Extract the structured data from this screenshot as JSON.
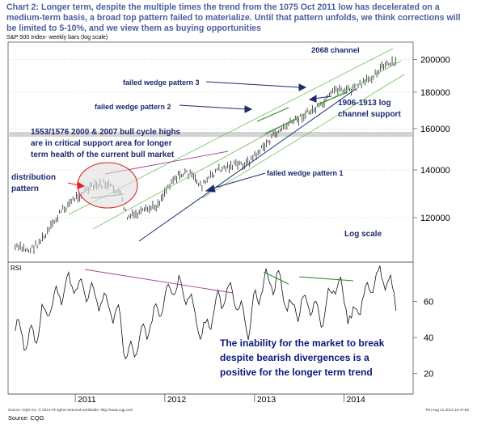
{
  "header": {
    "title": "Chart 2: Longer term, despite the multiple times the trend from the 1075 Oct 2011 low has decelerated on a medium-term basis, a broad top pattern failed to materialize. Until that pattern unfolds, we think corrections will be limited to 5-10%, and we view them as buying opportunities",
    "subtitle": "S&P 500 Index- weekly bars (log scale)"
  },
  "footer": {
    "copyright": "Source: CQG Inc. © 2014 All rights reserved worldwide. http://www.cqg.com",
    "timestamp": "Thu Aug 21 2014 10:47:55",
    "source": "Source: CQG"
  },
  "colors": {
    "title": "#4a5fa0",
    "annotation": "#1c2a6e",
    "channel": "#6fbf5a",
    "divergence": "#2e8b2e",
    "resistance": "#a04090",
    "ellipse": "#e02020",
    "support_band": "#c8c8c8"
  },
  "chart_data": [
    {
      "type": "line",
      "subtype": "weekly bars",
      "title": "S&P 500 Index- weekly bars (log scale)",
      "scale": "log",
      "x_ticks": [
        "2011",
        "2012",
        "2013",
        "2014"
      ],
      "y_ticks": [
        120000,
        140000,
        160000,
        180000,
        200000
      ],
      "ylim": [
        105000,
        210000
      ],
      "series": [
        {
          "x": [
            "2010-05",
            "2010-07",
            "2010-09",
            "2010-11",
            "2011-01",
            "2011-03",
            "2011-05",
            "2011-07",
            "2011-08",
            "2011-10",
            "2011-12",
            "2012-02",
            "2012-04",
            "2012-06",
            "2012-08",
            "2012-10",
            "2012-12",
            "2013-02",
            "2013-04",
            "2013-06",
            "2013-08",
            "2013-10",
            "2013-12",
            "2014-02",
            "2014-04",
            "2014-06",
            "2014-08"
          ],
          "values": [
            109000,
            108000,
            113000,
            122000,
            128000,
            132000,
            134000,
            130000,
            120000,
            122000,
            125000,
            136000,
            139000,
            133000,
            140000,
            142000,
            143000,
            150000,
            158000,
            163000,
            168000,
            172000,
            182000,
            181000,
            186000,
            195000,
            198000
          ]
        }
      ],
      "annotations": [
        "2068 channel",
        "failed wedge pattern 3",
        "failed wedge pattern 2",
        "1906-1913 log channel support",
        "1553/1576 2000 & 2007 bull cycle highs are in critical support area for longer term health of the current bull market",
        "distribution pattern",
        "failed wedge pattern 1",
        "Log scale"
      ]
    },
    {
      "type": "line",
      "title": "RSI",
      "y_ticks": [
        20,
        40,
        60
      ],
      "ylim": [
        10,
        80
      ],
      "series": [
        {
          "x": [
            "2010-05",
            "2010-07",
            "2010-09",
            "2010-11",
            "2011-01",
            "2011-03",
            "2011-05",
            "2011-07",
            "2011-08",
            "2011-10",
            "2011-12",
            "2012-02",
            "2012-04",
            "2012-06",
            "2012-08",
            "2012-10",
            "2012-12",
            "2013-02",
            "2013-04",
            "2013-06",
            "2013-08",
            "2013-10",
            "2013-12",
            "2014-02",
            "2014-04",
            "2014-06",
            "2014-08"
          ],
          "values": [
            45,
            38,
            55,
            66,
            70,
            64,
            60,
            50,
            28,
            40,
            55,
            70,
            66,
            40,
            60,
            65,
            45,
            70,
            72,
            55,
            60,
            52,
            72,
            50,
            65,
            75,
            62
          ]
        }
      ],
      "annotations": [
        "The inability for the market to break despite bearish divergences is a positive for the longer term trend"
      ]
    }
  ],
  "labels": {
    "rsi": "RSI",
    "annotations": [
      "2068 channel",
      "failed wedge pattern 3",
      "failed wedge pattern 2",
      "1906-1913 log",
      "channel support",
      "1553/1576 2000 & 2007 bull cycle highs",
      "are in critical support area for longer",
      "term health of the current bull market",
      "distribution",
      "pattern",
      "failed wedge pattern 1",
      "Log scale"
    ],
    "rsi_note": [
      "The inability for the market to break",
      "despite bearish divergences is a",
      "positive for the longer term trend"
    ]
  }
}
